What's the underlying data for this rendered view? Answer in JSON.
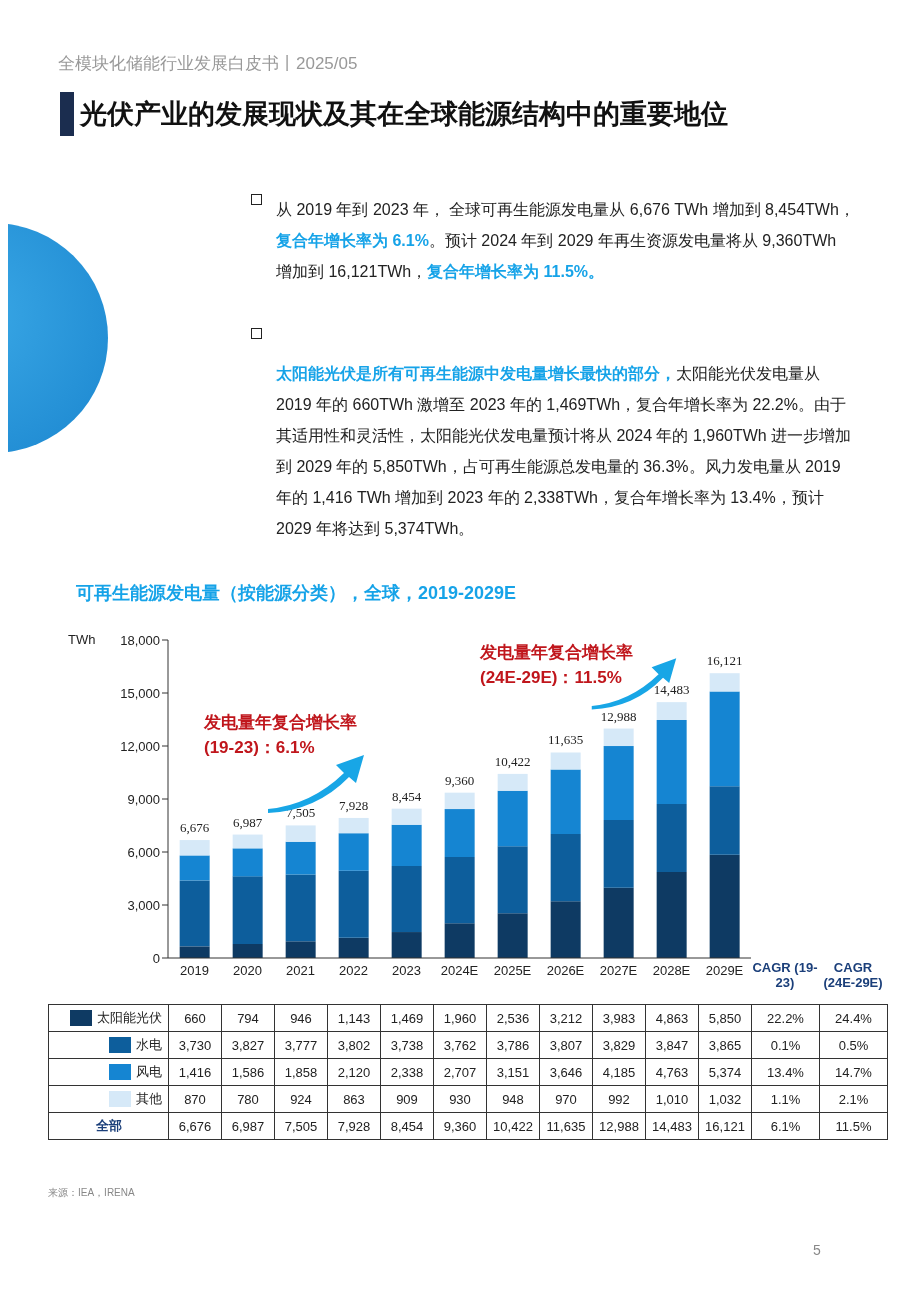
{
  "chart_data": {
    "type": "bar",
    "title": "光伏产业的发展现状及其在全球能源结构中的重要地位",
    "subtitle": "可再生能源发电量（按能源分类），全球，2019-2029E",
    "ylabel": "TWh",
    "categories": [
      "2019",
      "2020",
      "2021",
      "2022",
      "2023",
      "2024E",
      "2025E",
      "2026E",
      "2027E",
      "2028E",
      "2029E"
    ],
    "stacked": true,
    "legend": "bottom",
    "ylim": [
      0,
      18000
    ],
    "yticks": [
      {
        "value": 0,
        "label": "0"
      },
      {
        "value": 3000,
        "label": "3,000"
      },
      {
        "value": 6000,
        "label": "6,000"
      },
      {
        "value": 9000,
        "label": "9,000"
      },
      {
        "value": 12000,
        "label": "12,000"
      },
      {
        "value": 15000,
        "label": "15,000"
      },
      {
        "value": 18000,
        "label": "18,000"
      }
    ],
    "series": [
      {
        "name": "太阳能光伏",
        "color": "#0e3a63",
        "values": [
          660,
          794,
          946,
          1143,
          1469,
          1960,
          2536,
          3212,
          3983,
          4863,
          5850
        ],
        "value_labels": [
          "660",
          "794",
          "946",
          "1,143",
          "1,469",
          "1,960",
          "2,536",
          "3,212",
          "3,983",
          "4,863",
          "5,850"
        ]
      },
      {
        "name": "水电",
        "color": "#0d5e9c",
        "values": [
          3730,
          3827,
          3777,
          3802,
          3738,
          3762,
          3786,
          3807,
          3829,
          3847,
          3865
        ],
        "value_labels": [
          "3,730",
          "3,827",
          "3,777",
          "3,802",
          "3,738",
          "3,762",
          "3,786",
          "3,807",
          "3,829",
          "3,847",
          "3,865"
        ]
      },
      {
        "name": "风电",
        "color": "#1585d2",
        "values": [
          1416,
          1586,
          1858,
          2120,
          2338,
          2707,
          3151,
          3646,
          4185,
          4763,
          5374
        ],
        "value_labels": [
          "1,416",
          "1,586",
          "1,858",
          "2,120",
          "2,338",
          "2,707",
          "3,151",
          "3,646",
          "4,185",
          "4,763",
          "5,374"
        ]
      },
      {
        "name": "其他",
        "color": "#d6e9f8",
        "values": [
          870,
          780,
          924,
          863,
          909,
          930,
          948,
          970,
          992,
          1010,
          1032
        ],
        "value_labels": [
          "870",
          "780",
          "924",
          "863",
          "909",
          "930",
          "948",
          "970",
          "992",
          "1,010",
          "1,032"
        ]
      }
    ],
    "totals": [
      "6,676",
      "6,987",
      "7,505",
      "7,928",
      "8,454",
      "9,360",
      "10,422",
      "11,635",
      "12,988",
      "14,483",
      "16,121"
    ],
    "annotations": [
      "全模块化储能行业发展白皮书丨2025/05",
      "从 2019 年到 2023 年， 全球可再生能源发电量从 6,676 TWh 增加到 8,454TWh，",
      "复合年增长率为 6.1%",
      "。预计 2024 年到 2029 年再生资源发电量将从 9,360TWh 增加到 16,121TWh，",
      "复合年增长率为 11.5%。",
      "太阳能光伏是所有可再生能源中发电量增长最快的部分，",
      "太阳能光伏发电量从 2019 年的 660TWh 激增至 2023 年的 1,469TWh，复合年增长率为 22.2%。由于其适用性和灵活性，太阳能光伏发电量预计将从 2024 年的 1,960TWh 进一步增加到 2029 年的 5,850TWh，占可再生能源总发电量的 36.3%。风力发电量从 2019 年的 1,416 TWh 增加到 2023 年的 2,338TWh，复合年增长率为 13.4%，预计 2029 年将达到 5,374TWh。",
      "发电量年复合增长率 (19-23)：6.1%",
      "发电量年复合增长率 (24E-29E)：11.5%",
      "CAGR (19-23)",
      "CAGR (24E-29E)",
      "22.2%",
      "0.1%",
      "13.4%",
      "1.1%",
      "6.1%",
      "24.4%",
      "0.5%",
      "14.7%",
      "2.1%",
      "11.5%",
      "全部",
      "来源：IEA，IRENA",
      "5"
    ]
  }
}
